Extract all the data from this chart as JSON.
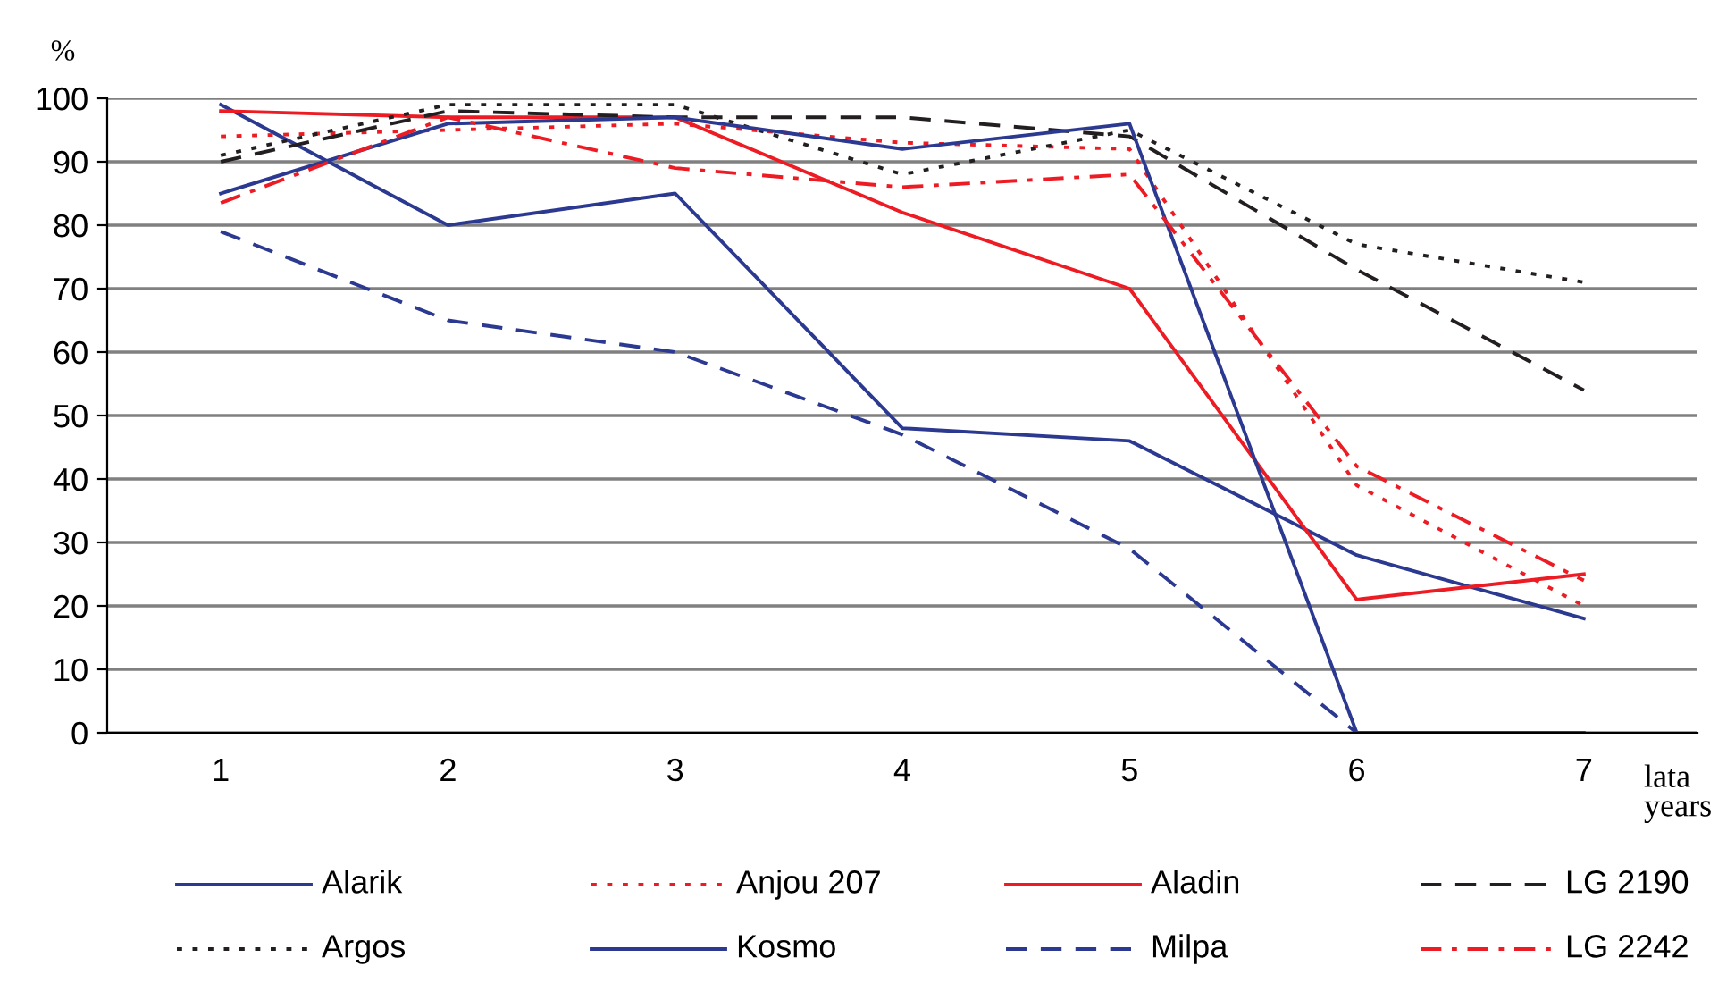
{
  "chart_data": {
    "type": "line",
    "ylabel": "%",
    "xlabel": "lata\nyears",
    "categories": [
      "1",
      "2",
      "3",
      "4",
      "5",
      "6",
      "7"
    ],
    "ylim": [
      0,
      100
    ],
    "yticks": [
      0,
      10,
      20,
      30,
      40,
      50,
      60,
      70,
      80,
      90,
      100
    ],
    "grid": "y",
    "legend": "bottom",
    "marker": "none",
    "series": [
      {
        "name": "Alarik",
        "color": "#2b3990",
        "line_style": "solid",
        "values": [
          99,
          80,
          85,
          48,
          46,
          28,
          18
        ]
      },
      {
        "name": "Anjou 207",
        "color": "#ed1c24",
        "line_style": "dotted",
        "values": [
          94,
          95,
          96,
          93,
          92,
          39,
          20
        ]
      },
      {
        "name": "Aladin",
        "color": "#ed1c24",
        "line_style": "solid",
        "values": [
          98,
          97,
          97,
          82,
          70,
          21,
          25
        ]
      },
      {
        "name": "LG 2190",
        "color": "#231f20",
        "line_style": "dashed",
        "values": [
          90,
          98,
          97,
          97,
          94,
          73,
          54
        ]
      },
      {
        "name": "Argos",
        "color": "#231f20",
        "line_style": "dotted",
        "values": [
          91,
          99,
          99,
          88,
          95,
          77,
          71
        ]
      },
      {
        "name": "Kosmo",
        "color": "#2b3990",
        "line_style": "solid",
        "values": [
          85,
          96,
          97,
          92,
          96,
          0,
          0
        ]
      },
      {
        "name": "Milpa",
        "color": "#2b3990",
        "line_style": "dashed",
        "values": [
          79,
          65,
          60,
          47,
          29,
          0,
          0
        ]
      },
      {
        "name": "LG 2242",
        "color": "#ed1c24",
        "line_style": "dashdot",
        "values": [
          83.5,
          97,
          89,
          86,
          88,
          42,
          24
        ]
      }
    ]
  }
}
